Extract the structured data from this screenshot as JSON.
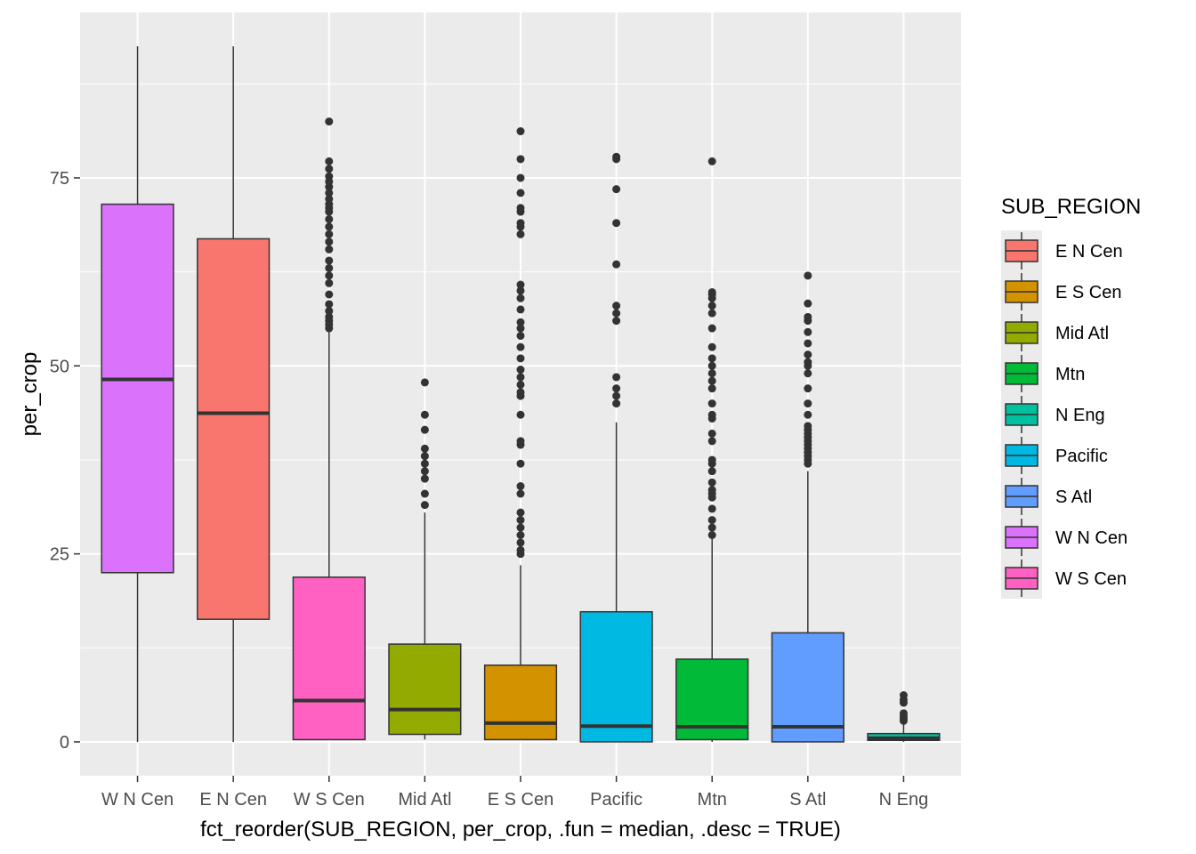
{
  "chart_data": {
    "type": "boxplot",
    "xlabel": "fct_reorder(SUB_REGION, per_crop, .fun = median, .desc = TRUE)",
    "ylabel": "per_crop",
    "ylim": [
      -4.5,
      97
    ],
    "yticks": [
      0,
      25,
      50,
      75
    ],
    "grid": true,
    "legend_title": "SUB_REGION",
    "legend_position": "right",
    "legend": [
      {
        "label": "E N Cen",
        "color": "#F8766D"
      },
      {
        "label": "E S Cen",
        "color": "#D39200"
      },
      {
        "label": "Mid Atl",
        "color": "#93AA00"
      },
      {
        "label": "Mtn",
        "color": "#00BA38"
      },
      {
        "label": "N Eng",
        "color": "#00C19F"
      },
      {
        "label": "Pacific",
        "color": "#00B9E3"
      },
      {
        "label": "S Atl",
        "color": "#619CFF"
      },
      {
        "label": "W N Cen",
        "color": "#DB72FB"
      },
      {
        "label": "W S Cen",
        "color": "#FF61C3"
      }
    ],
    "categories": [
      "W N Cen",
      "E N Cen",
      "W S Cen",
      "Mid Atl",
      "E S Cen",
      "Pacific",
      "Mtn",
      "S Atl",
      "N Eng"
    ],
    "boxes": [
      {
        "category": "W N Cen",
        "color": "#DB72FB",
        "min": 0,
        "q1": 22.5,
        "median": 48.2,
        "q3": 71.5,
        "max": 92.5,
        "outliers": []
      },
      {
        "category": "E N Cen",
        "color": "#F8766D",
        "min": 0,
        "q1": 16.3,
        "median": 43.7,
        "q3": 66.9,
        "max": 92.5,
        "outliers": []
      },
      {
        "category": "W S Cen",
        "color": "#FF61C3",
        "min": 0.3,
        "q1": 0.3,
        "median": 5.5,
        "q3": 21.9,
        "max": 54.5,
        "outliers": [
          55,
          55.5,
          56,
          56.5,
          57.3,
          58.2,
          59.5,
          61,
          62,
          63,
          64,
          65.5,
          66.5,
          67.5,
          68.5,
          69.5,
          70.5,
          71,
          71.5,
          72.2,
          73,
          73.8,
          74.5,
          75.2,
          76.2,
          77.2,
          82.5
        ]
      },
      {
        "category": "Mid Atl",
        "color": "#93AA00",
        "min": 0.3,
        "q1": 1,
        "median": 4.3,
        "q3": 13,
        "max": 30.5,
        "outliers": [
          31.5,
          33,
          35,
          36,
          37,
          38,
          39,
          41.5,
          43.5,
          47.8
        ]
      },
      {
        "category": "E S Cen",
        "color": "#D39200",
        "min": 0.3,
        "q1": 0.3,
        "median": 2.5,
        "q3": 10.2,
        "max": 23.5,
        "outliers": [
          25,
          25.5,
          26.5,
          27.5,
          28.5,
          29.5,
          30.5,
          33,
          34,
          37,
          39.5,
          40,
          43.5,
          46,
          46.5,
          47.5,
          48.5,
          49.5,
          51,
          52.5,
          54,
          55,
          55.8,
          57.5,
          59,
          60,
          60.8,
          67.5,
          68.5,
          69,
          70.5,
          71,
          73,
          75,
          77.5,
          81.2
        ]
      },
      {
        "category": "Pacific",
        "color": "#00B9E3",
        "min": 0,
        "q1": 0,
        "median": 2.1,
        "q3": 17.3,
        "max": 42.5,
        "outliers": [
          45,
          46,
          47,
          48.5,
          56,
          57,
          58,
          63.5,
          69,
          73.5,
          77.5,
          77.8
        ]
      },
      {
        "category": "Mtn",
        "color": "#00BA38",
        "min": 0,
        "q1": 0.3,
        "median": 2,
        "q3": 11,
        "max": 27,
        "outliers": [
          27.5,
          28.5,
          29.5,
          31,
          32.5,
          33,
          33.5,
          34.5,
          36,
          37,
          37.5,
          40,
          41,
          43,
          43.5,
          45,
          47,
          48,
          49,
          50,
          51,
          52.5,
          55,
          57,
          58,
          59,
          59.5,
          59.8,
          77.2
        ]
      },
      {
        "category": "S Atl",
        "color": "#619CFF",
        "min": 0,
        "q1": 0,
        "median": 2,
        "q3": 14.5,
        "max": 36,
        "outliers": [
          37,
          37.5,
          38,
          38.5,
          39,
          39.5,
          40,
          40.5,
          41,
          41.5,
          42,
          43.5,
          45,
          47,
          49,
          50,
          50.5,
          51.5,
          53,
          54.5,
          56,
          56.5,
          58.3,
          62
        ]
      },
      {
        "category": "N Eng",
        "color": "#00C19F",
        "min": 0,
        "q1": 0.2,
        "median": 0.5,
        "q3": 1.1,
        "max": 2.5,
        "outliers": [
          2.8,
          3,
          3.2,
          3.5,
          3.8,
          5.2,
          5.6,
          6.2
        ]
      }
    ]
  }
}
